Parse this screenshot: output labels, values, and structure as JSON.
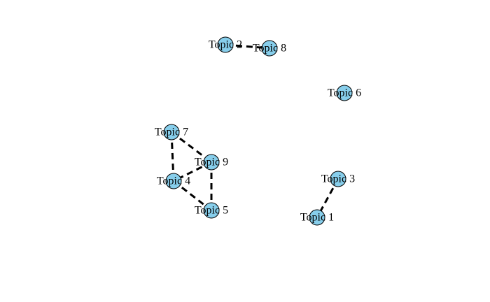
{
  "graph": {
    "nodes": [
      {
        "id": "t1",
        "label": "Topic 1"
      },
      {
        "id": "t2",
        "label": "Topic 2"
      },
      {
        "id": "t3",
        "label": "Topic 3"
      },
      {
        "id": "t4",
        "label": "Topic 4"
      },
      {
        "id": "t5",
        "label": "Topic 5"
      },
      {
        "id": "t6",
        "label": "Topic 6"
      },
      {
        "id": "t7",
        "label": "Topic 7"
      },
      {
        "id": "t8",
        "label": "Topic 8"
      },
      {
        "id": "t9",
        "label": "Topic 9"
      }
    ],
    "edges": [
      {
        "from": "t2",
        "to": "t8"
      },
      {
        "from": "t7",
        "to": "t9"
      },
      {
        "from": "t7",
        "to": "t4"
      },
      {
        "from": "t9",
        "to": "t4"
      },
      {
        "from": "t9",
        "to": "t5"
      },
      {
        "from": "t4",
        "to": "t5"
      },
      {
        "from": "t3",
        "to": "t1"
      }
    ],
    "style": {
      "node_fill": "#87ceeb",
      "node_stroke": "#000000",
      "edge_color": "#000000",
      "edge_style": "dashed",
      "background": "#ffffff"
    }
  }
}
